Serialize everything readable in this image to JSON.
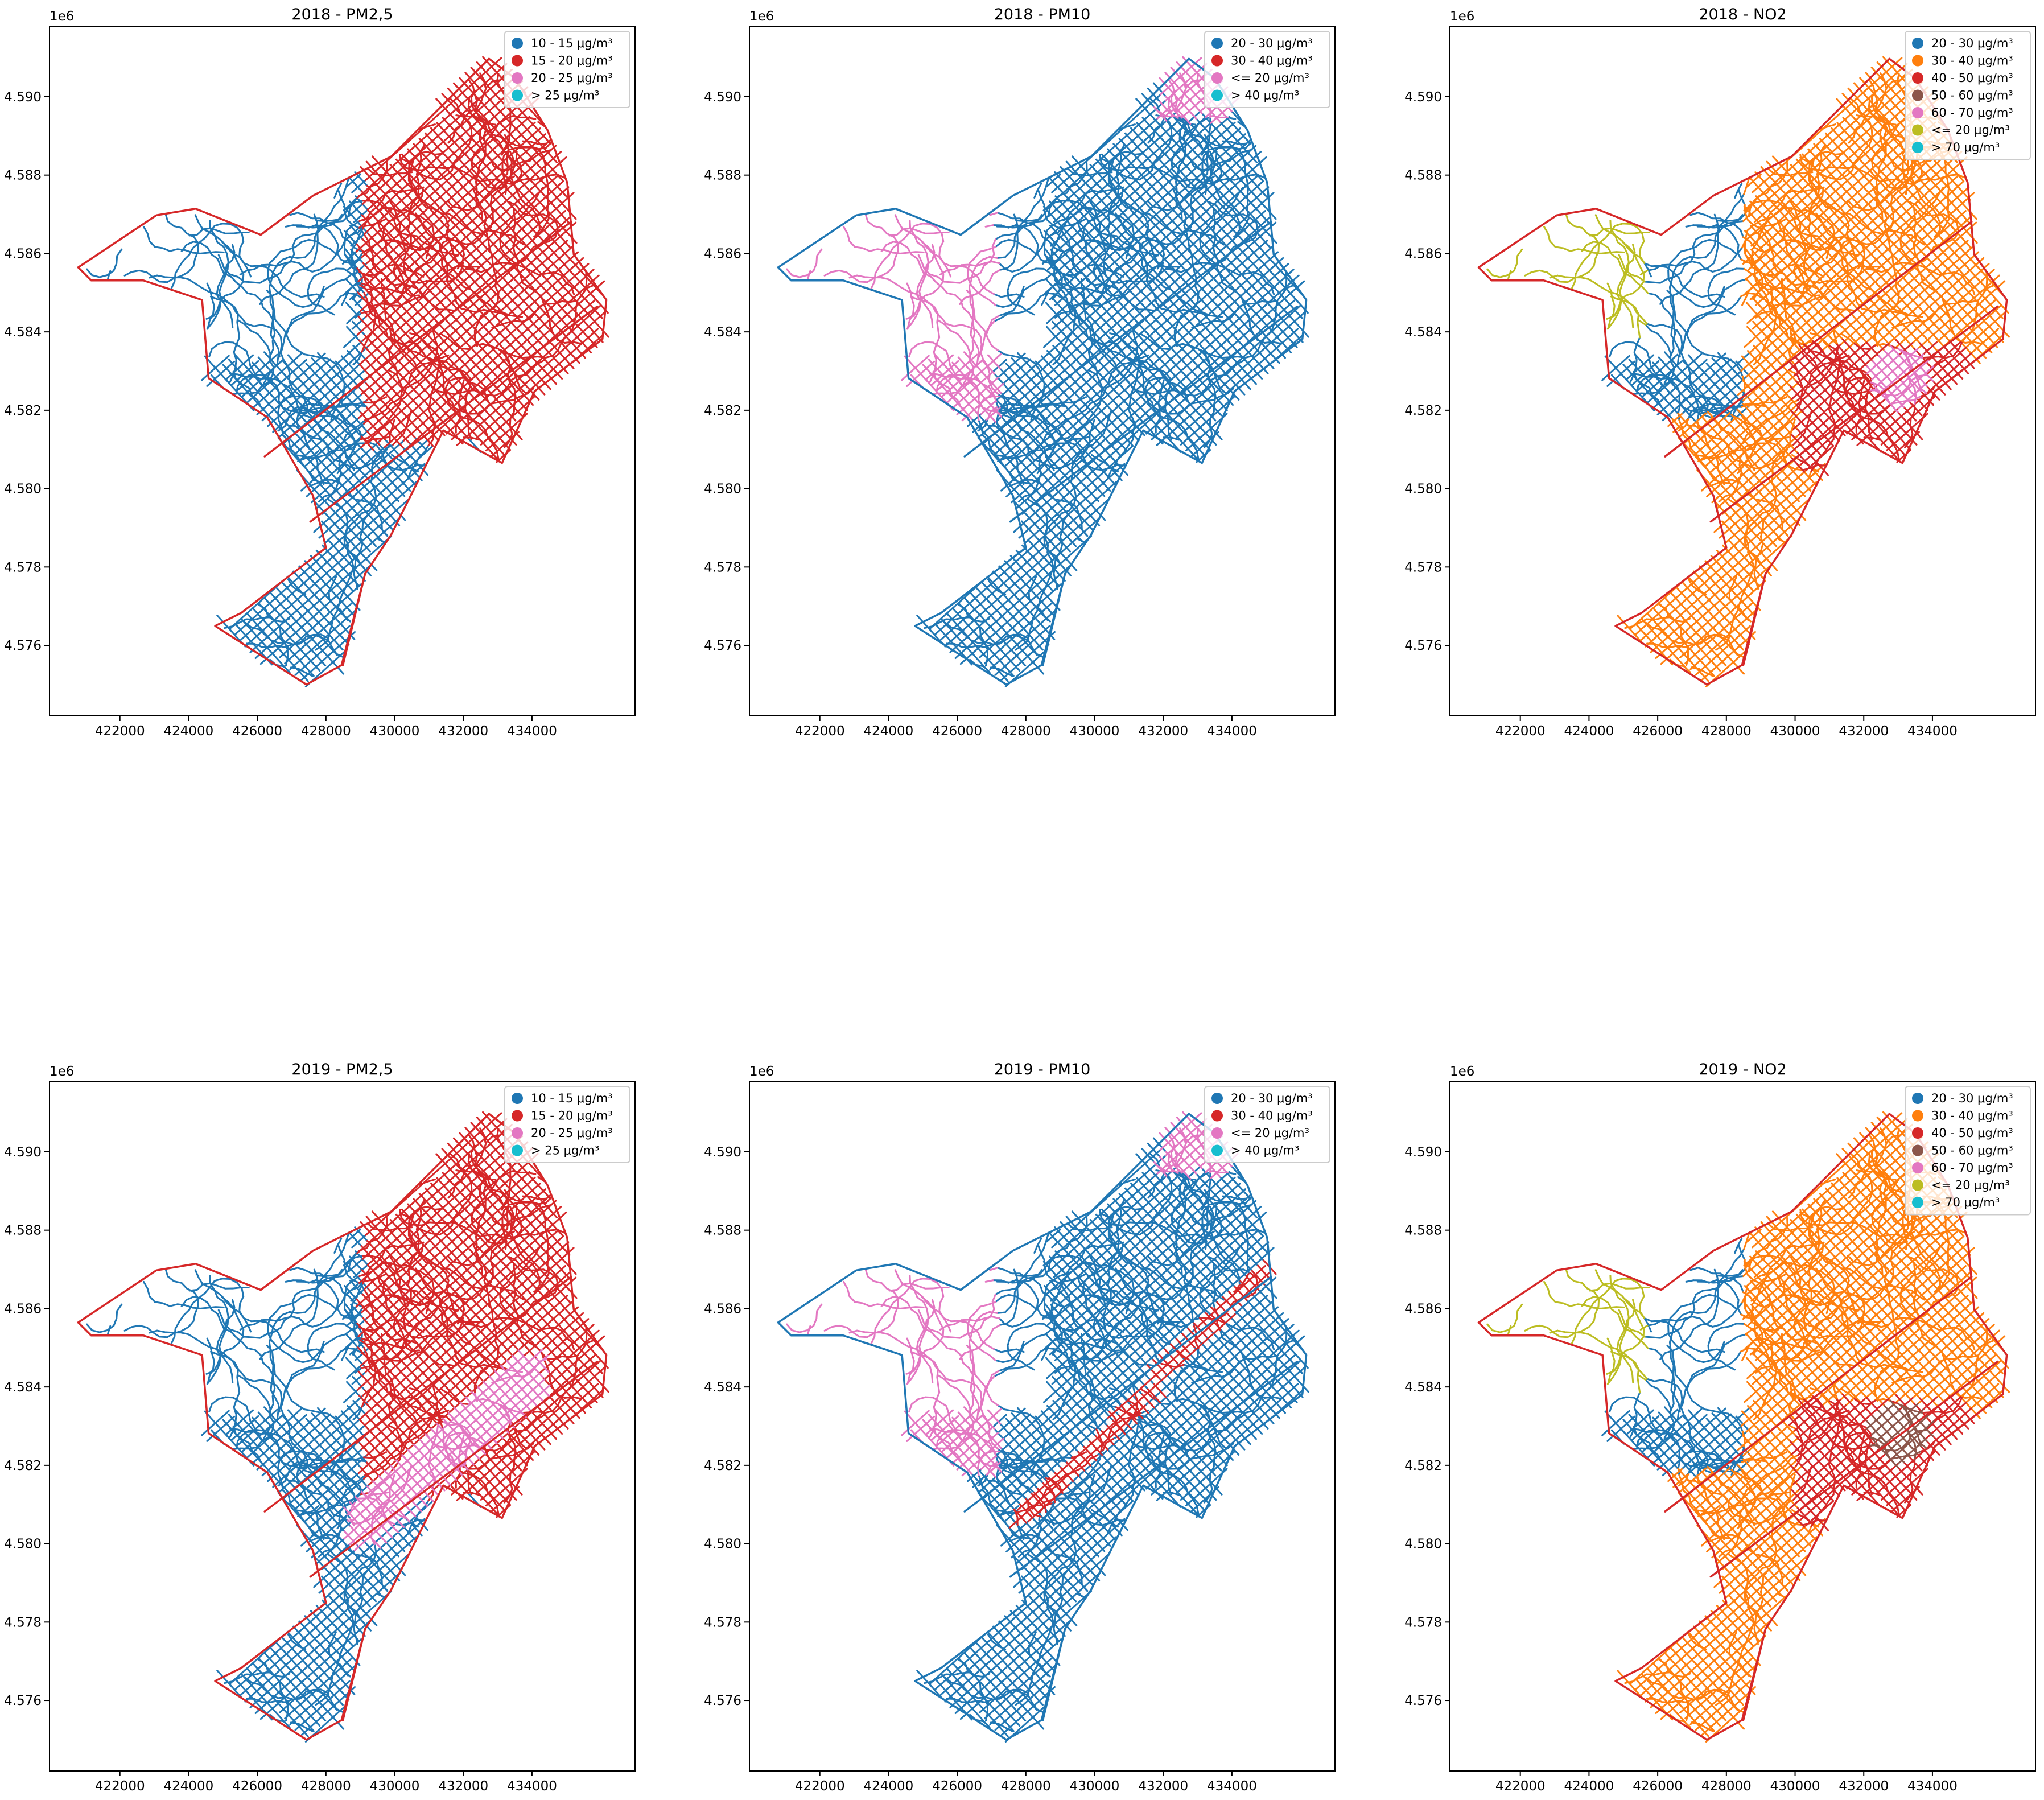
{
  "chart_data": [
    {
      "type": "map",
      "title": "2018 - PM2,5",
      "offset_label": "1e6",
      "xlim": [
        419950,
        437000
      ],
      "ylim": [
        4.5742,
        4.5918
      ],
      "xticks": [
        422000,
        424000,
        426000,
        428000,
        430000,
        432000,
        434000
      ],
      "yticks": [
        {
          "value": 4.576,
          "label": "4.576"
        },
        {
          "value": 4.578,
          "label": "4.578"
        },
        {
          "value": 4.58,
          "label": "4.580"
        },
        {
          "value": 4.582,
          "label": "4.582"
        },
        {
          "value": 4.584,
          "label": "4.584"
        },
        {
          "value": 4.586,
          "label": "4.586"
        },
        {
          "value": 4.588,
          "label": "4.588"
        },
        {
          "value": 4.59,
          "label": "4.590"
        }
      ],
      "legend": [
        {
          "name": "10 - 15 μg/m³",
          "color": "#1f77b4"
        },
        {
          "name": "15 - 20 μg/m³",
          "color": "#d62728"
        },
        {
          "name": "20 - 25 μg/m³",
          "color": "#e377c2"
        },
        {
          "name": "> 25 μg/m³",
          "color": "#17becf"
        }
      ]
    },
    {
      "type": "map",
      "title": "2018 - PM10",
      "offset_label": "1e6",
      "xlim": [
        419950,
        437000
      ],
      "ylim": [
        4.5742,
        4.5918
      ],
      "xticks": [
        422000,
        424000,
        426000,
        428000,
        430000,
        432000,
        434000
      ],
      "yticks": [
        {
          "value": 4.576,
          "label": "4.576"
        },
        {
          "value": 4.578,
          "label": "4.578"
        },
        {
          "value": 4.58,
          "label": "4.580"
        },
        {
          "value": 4.582,
          "label": "4.582"
        },
        {
          "value": 4.584,
          "label": "4.584"
        },
        {
          "value": 4.586,
          "label": "4.586"
        },
        {
          "value": 4.588,
          "label": "4.588"
        },
        {
          "value": 4.59,
          "label": "4.590"
        }
      ],
      "legend": [
        {
          "name": "20 - 30 μg/m³",
          "color": "#1f77b4"
        },
        {
          "name": "30 - 40 μg/m³",
          "color": "#d62728"
        },
        {
          "name": "<= 20 μg/m³",
          "color": "#e377c2"
        },
        {
          "name": "> 40 μg/m³",
          "color": "#17becf"
        }
      ]
    },
    {
      "type": "map",
      "title": "2018 - NO2",
      "offset_label": "1e6",
      "xlim": [
        419950,
        437000
      ],
      "ylim": [
        4.5742,
        4.5918
      ],
      "xticks": [
        422000,
        424000,
        426000,
        428000,
        430000,
        432000,
        434000
      ],
      "yticks": [
        {
          "value": 4.576,
          "label": "4.576"
        },
        {
          "value": 4.578,
          "label": "4.578"
        },
        {
          "value": 4.58,
          "label": "4.580"
        },
        {
          "value": 4.582,
          "label": "4.582"
        },
        {
          "value": 4.584,
          "label": "4.584"
        },
        {
          "value": 4.586,
          "label": "4.586"
        },
        {
          "value": 4.588,
          "label": "4.588"
        },
        {
          "value": 4.59,
          "label": "4.590"
        }
      ],
      "legend": [
        {
          "name": "20 - 30 μg/m³",
          "color": "#1f77b4"
        },
        {
          "name": "30 - 40 μg/m³",
          "color": "#ff7f0e"
        },
        {
          "name": "40 - 50 μg/m³",
          "color": "#d62728"
        },
        {
          "name": "50 - 60 μg/m³",
          "color": "#8c564b"
        },
        {
          "name": "60 - 70 μg/m³",
          "color": "#e377c2"
        },
        {
          "name": "<= 20 μg/m³",
          "color": "#bcbd22"
        },
        {
          "name": "> 70 μg/m³",
          "color": "#17becf"
        }
      ]
    },
    {
      "type": "map",
      "title": "2019 - PM2,5",
      "offset_label": "1e6",
      "xlim": [
        419950,
        437000
      ],
      "ylim": [
        4.5742,
        4.5918
      ],
      "xticks": [
        422000,
        424000,
        426000,
        428000,
        430000,
        432000,
        434000
      ],
      "yticks": [
        {
          "value": 4.576,
          "label": "4.576"
        },
        {
          "value": 4.578,
          "label": "4.578"
        },
        {
          "value": 4.58,
          "label": "4.580"
        },
        {
          "value": 4.582,
          "label": "4.582"
        },
        {
          "value": 4.584,
          "label": "4.584"
        },
        {
          "value": 4.586,
          "label": "4.586"
        },
        {
          "value": 4.588,
          "label": "4.588"
        },
        {
          "value": 4.59,
          "label": "4.590"
        }
      ],
      "legend": [
        {
          "name": "10 - 15 μg/m³",
          "color": "#1f77b4"
        },
        {
          "name": "15 - 20 μg/m³",
          "color": "#d62728"
        },
        {
          "name": "20 - 25 μg/m³",
          "color": "#e377c2"
        },
        {
          "name": "> 25 μg/m³",
          "color": "#17becf"
        }
      ]
    },
    {
      "type": "map",
      "title": "2019 - PM10",
      "offset_label": "1e6",
      "xlim": [
        419950,
        437000
      ],
      "ylim": [
        4.5742,
        4.5918
      ],
      "xticks": [
        422000,
        424000,
        426000,
        428000,
        430000,
        432000,
        434000
      ],
      "yticks": [
        {
          "value": 4.576,
          "label": "4.576"
        },
        {
          "value": 4.578,
          "label": "4.578"
        },
        {
          "value": 4.58,
          "label": "4.580"
        },
        {
          "value": 4.582,
          "label": "4.582"
        },
        {
          "value": 4.584,
          "label": "4.584"
        },
        {
          "value": 4.586,
          "label": "4.586"
        },
        {
          "value": 4.588,
          "label": "4.588"
        },
        {
          "value": 4.59,
          "label": "4.590"
        }
      ],
      "legend": [
        {
          "name": "20 - 30 μg/m³",
          "color": "#1f77b4"
        },
        {
          "name": "30 - 40 μg/m³",
          "color": "#d62728"
        },
        {
          "name": "<= 20 μg/m³",
          "color": "#e377c2"
        },
        {
          "name": "> 40 μg/m³",
          "color": "#17becf"
        }
      ]
    },
    {
      "type": "map",
      "title": "2019 - NO2",
      "offset_label": "1e6",
      "xlim": [
        419950,
        437000
      ],
      "ylim": [
        4.5742,
        4.5918
      ],
      "xticks": [
        422000,
        424000,
        426000,
        428000,
        430000,
        432000,
        434000
      ],
      "yticks": [
        {
          "value": 4.576,
          "label": "4.576"
        },
        {
          "value": 4.578,
          "label": "4.578"
        },
        {
          "value": 4.58,
          "label": "4.580"
        },
        {
          "value": 4.582,
          "label": "4.582"
        },
        {
          "value": 4.584,
          "label": "4.584"
        },
        {
          "value": 4.586,
          "label": "4.586"
        },
        {
          "value": 4.588,
          "label": "4.588"
        },
        {
          "value": 4.59,
          "label": "4.590"
        }
      ],
      "legend": [
        {
          "name": "20 - 30 μg/m³",
          "color": "#1f77b4"
        },
        {
          "name": "30 - 40 μg/m³",
          "color": "#ff7f0e"
        },
        {
          "name": "40 - 50 μg/m³",
          "color": "#d62728"
        },
        {
          "name": "50 - 60 μg/m³",
          "color": "#8c564b"
        },
        {
          "name": "60 - 70 μg/m³",
          "color": "#e377c2"
        },
        {
          "name": "<= 20 μg/m³",
          "color": "#bcbd22"
        },
        {
          "name": "> 70 μg/m³",
          "color": "#17becf"
        }
      ]
    }
  ]
}
